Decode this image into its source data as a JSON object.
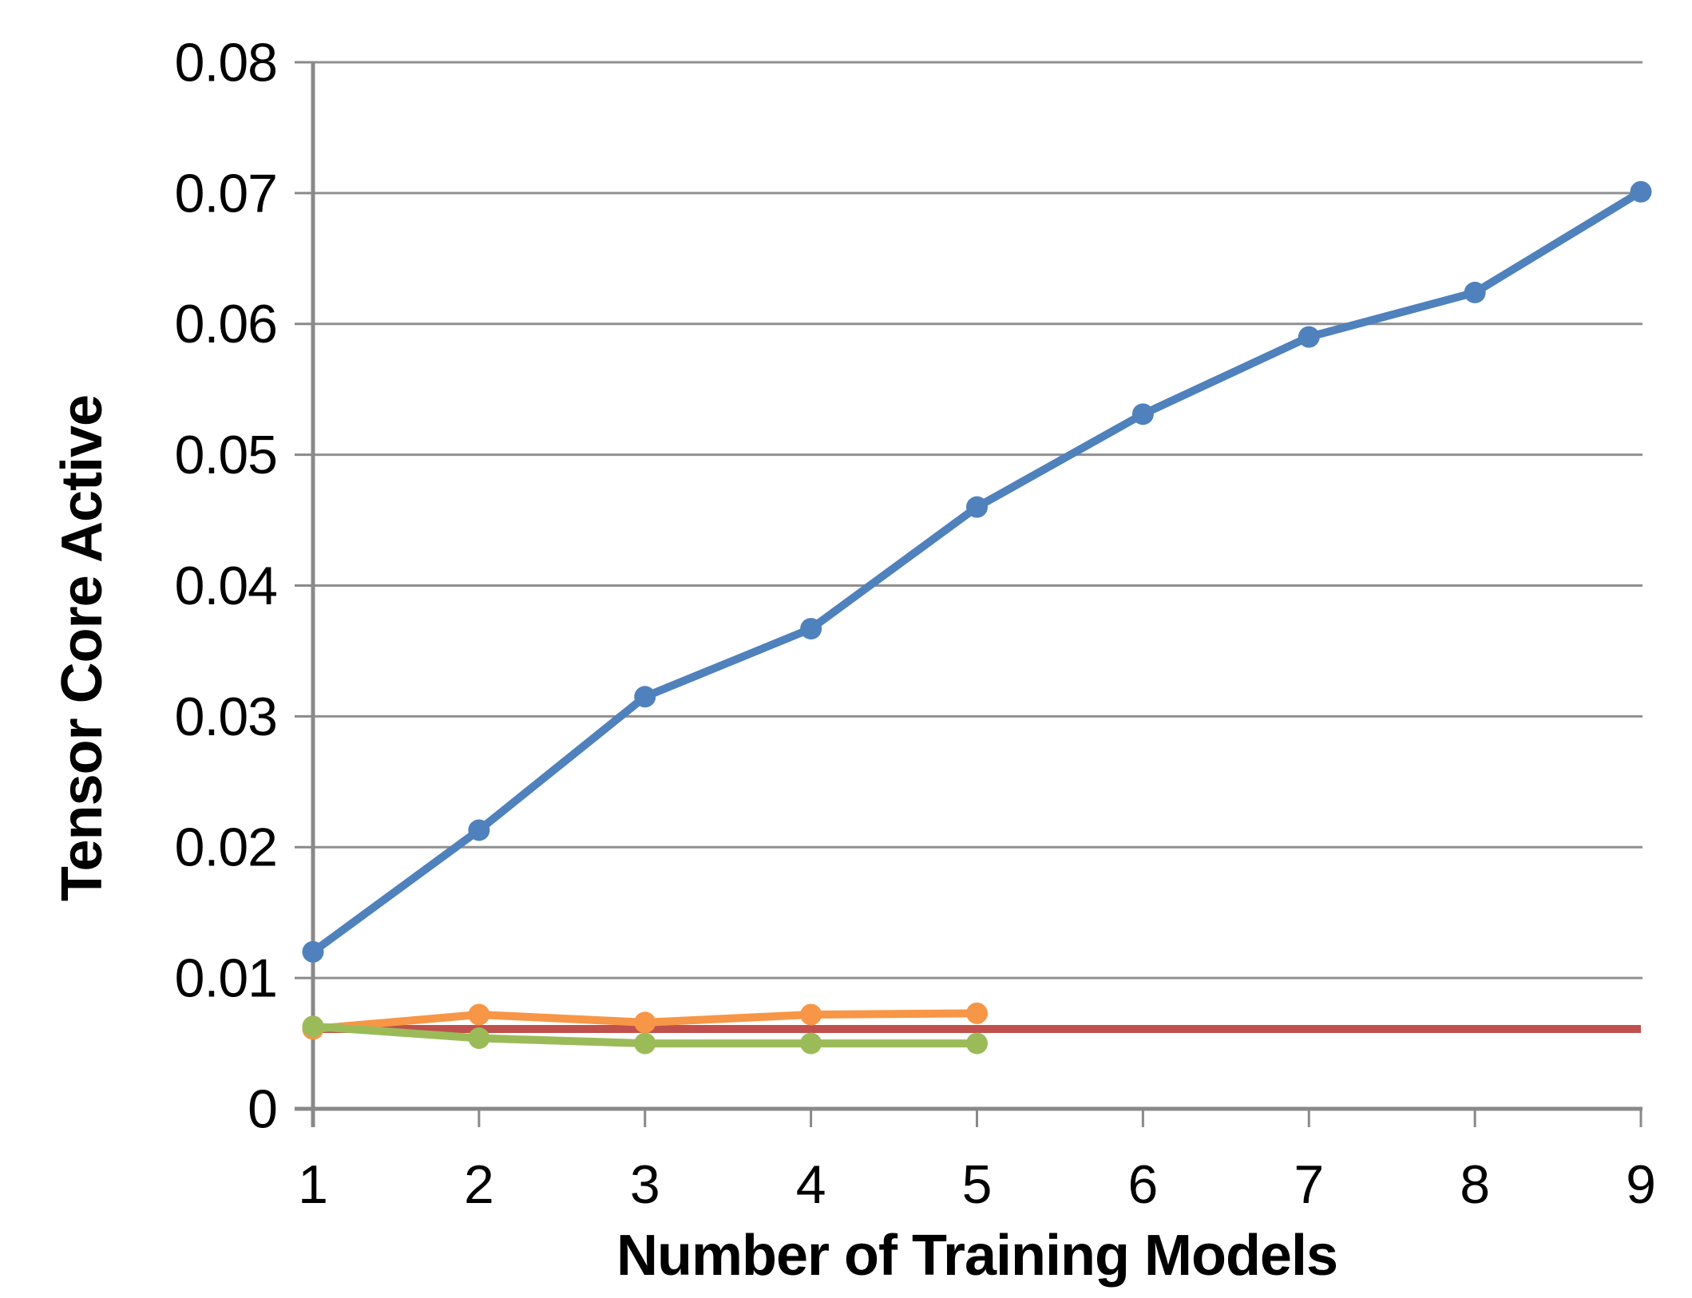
{
  "page": {
    "background": "#ffffff",
    "text_color": "#000000"
  },
  "chart_data": {
    "type": "line",
    "title": "",
    "xlabel": "Number of Training Models",
    "ylabel": "Tensor Core Active",
    "xlim": [
      1,
      9
    ],
    "ylim": [
      0,
      0.08
    ],
    "xticks": {
      "values": [
        1,
        2,
        3,
        4,
        5,
        6,
        7,
        8,
        9
      ],
      "labels": [
        "1",
        "2",
        "3",
        "4",
        "5",
        "6",
        "7",
        "8",
        "9"
      ]
    },
    "yticks": {
      "values": [
        0,
        0.01,
        0.02,
        0.03,
        0.04,
        0.05,
        0.06,
        0.07,
        0.08
      ],
      "labels": [
        "0",
        "0.01",
        "0.02",
        "0.03",
        "0.04",
        "0.05",
        "0.06",
        "0.07",
        "0.08"
      ]
    },
    "grid": {
      "horizontal": true,
      "vertical": false
    },
    "grid_color": "#909090",
    "axis_color": "#898989",
    "legend": {
      "visible": false
    },
    "series": [
      {
        "name": "blue-series",
        "color": "#4F81BD",
        "markers": true,
        "x": [
          1,
          2,
          3,
          4,
          5,
          6,
          7,
          8,
          9
        ],
        "y": [
          0.012,
          0.0213,
          0.0315,
          0.0367,
          0.046,
          0.0531,
          0.059,
          0.0624,
          0.0701
        ]
      },
      {
        "name": "red-series",
        "color": "#C0504D",
        "markers": false,
        "x": [
          1,
          2,
          3,
          4,
          5,
          6,
          7,
          8,
          9
        ],
        "y": [
          0.0061,
          0.0061,
          0.0061,
          0.0061,
          0.0061,
          0.0061,
          0.0061,
          0.0061,
          0.0061
        ]
      },
      {
        "name": "orange-series",
        "color": "#F79646",
        "markers": true,
        "x": [
          1,
          2,
          3,
          4,
          5
        ],
        "y": [
          0.0061,
          0.0072,
          0.0066,
          0.0072,
          0.0073
        ]
      },
      {
        "name": "green-series",
        "color": "#9BBB59",
        "markers": true,
        "x": [
          1,
          2,
          3,
          4,
          5
        ],
        "y": [
          0.0063,
          0.0054,
          0.005,
          0.005,
          0.005
        ]
      }
    ]
  }
}
